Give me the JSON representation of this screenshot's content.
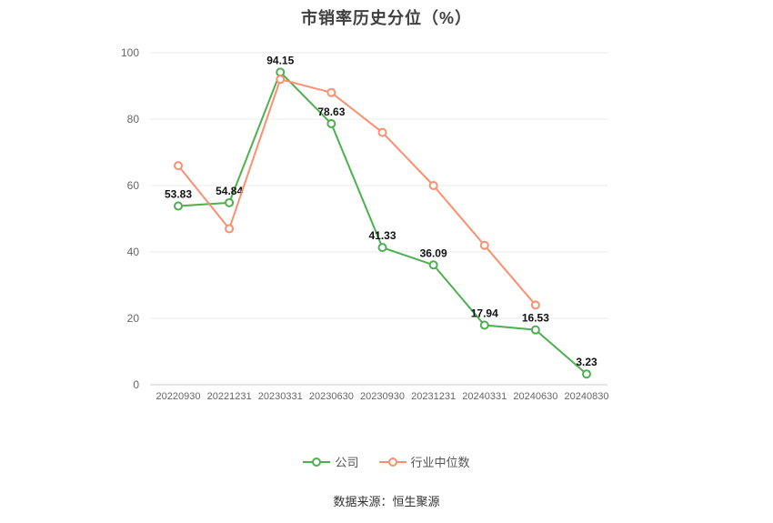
{
  "title": "市销率历史分位（%）",
  "source": "数据来源：恒生聚源",
  "legend": [
    {
      "label": "公司",
      "color": "#4cb050"
    },
    {
      "label": "行业中位数",
      "color": "#fc8f6f"
    }
  ],
  "axis": {
    "text_color": "#666666",
    "grid_color": "#ebebeb",
    "axis_line_color": "#cccccc",
    "value_label_color": "#111111"
  },
  "chart_data": {
    "type": "line",
    "title": "市销率历史分位（%）",
    "categories": [
      "20220930",
      "20221231",
      "20230331",
      "20230630",
      "20230930",
      "20231231",
      "20240331",
      "20240630",
      "20240830"
    ],
    "series": [
      {
        "name": "公司",
        "color": "#4cb050",
        "labeled": true,
        "values": [
          53.83,
          54.84,
          94.15,
          78.63,
          41.33,
          36.09,
          17.94,
          16.53,
          3.23
        ]
      },
      {
        "name": "行业中位数",
        "color": "#fc8f6f",
        "labeled": false,
        "values": [
          66,
          47,
          92,
          88,
          76,
          60,
          42,
          24,
          null
        ]
      }
    ],
    "xlabel": "",
    "ylabel": "",
    "ylim": [
      0,
      100
    ],
    "yticks": [
      0,
      20,
      40,
      60,
      80,
      100
    ],
    "grid": true,
    "legend_position": "bottom"
  }
}
